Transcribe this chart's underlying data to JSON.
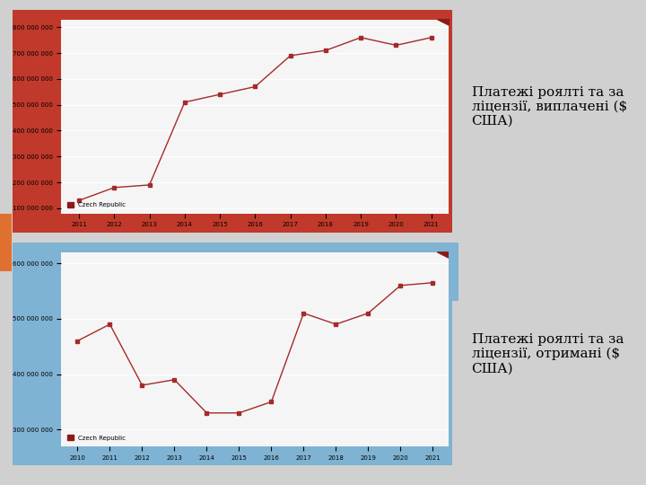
{
  "chart1": {
    "label": "Czech Republic",
    "years": [
      2011,
      2012,
      2013,
      2014,
      2015,
      2016,
      2017,
      2018,
      2019,
      2020,
      2021
    ],
    "values": [
      130000000,
      180000000,
      190000000,
      510000000,
      540000000,
      570000000,
      690000000,
      710000000,
      760000000,
      730000000,
      760000000
    ],
    "yticks": [
      100000000,
      200000000,
      300000000,
      400000000,
      500000000,
      600000000,
      700000000,
      800000000
    ],
    "ylim": [
      80000000,
      830000000
    ]
  },
  "chart2": {
    "label": "Czech Republic",
    "years": [
      2010,
      2011,
      2012,
      2013,
      2014,
      2015,
      2016,
      2017,
      2018,
      2019,
      2020,
      2021
    ],
    "values": [
      460000000,
      490000000,
      380000000,
      390000000,
      330000000,
      330000000,
      350000000,
      510000000,
      490000000,
      510000000,
      560000000,
      565000000
    ],
    "yticks": [
      300000000,
      400000000,
      500000000,
      600000000
    ],
    "ylim": [
      270000000,
      620000000
    ]
  },
  "line_color": "#a52a2a",
  "marker_color": "#a52a2a",
  "bg_chart": "#f5f5f5",
  "bg_outer_top": "#c0392b",
  "bg_outer_bottom": "#7fb3d3",
  "legend_square_color": "#8b1a1a",
  "corner_triangle_color": "#8b1a1a",
  "text1": "Платежі роялті та за\nліцензії, виплачені ($\nСША)",
  "text2": "Платежі роялті та за\nліцензії, отримані ($\nСША)"
}
